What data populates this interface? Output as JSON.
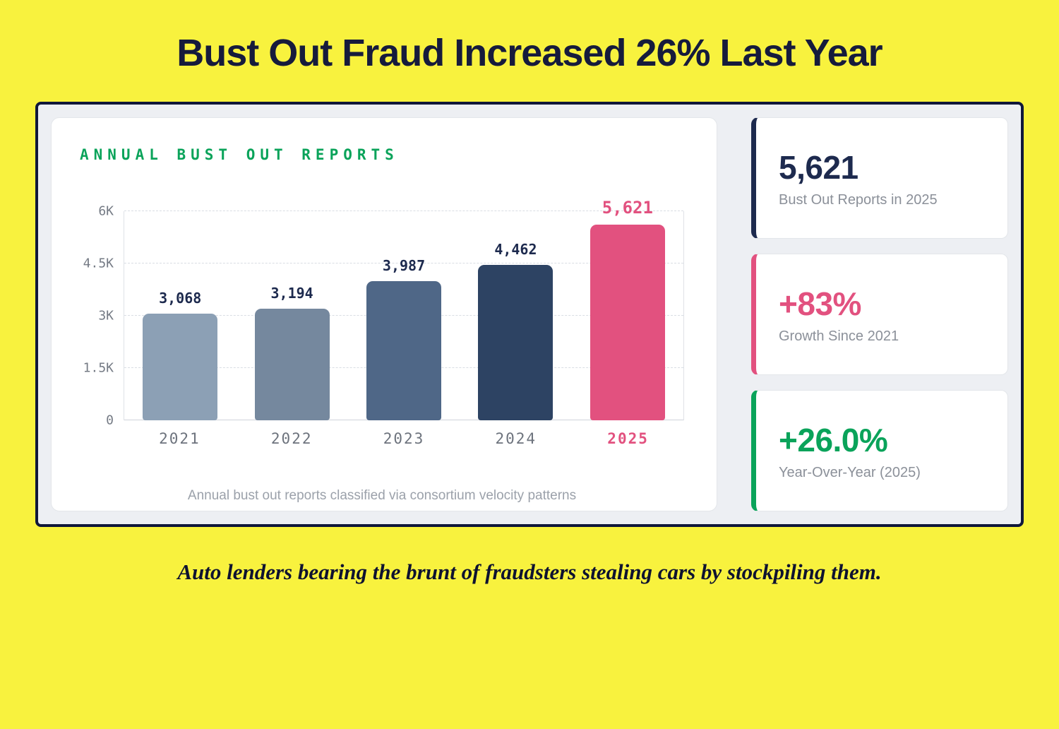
{
  "page": {
    "title": "Bust Out Fraud Increased 26% Last Year",
    "footer_note": "Auto lenders bearing the brunt of fraudsters stealing cars by stockpiling them."
  },
  "chart_data": {
    "type": "bar",
    "title": "ANNUAL BUST OUT REPORTS",
    "categories": [
      "2021",
      "2022",
      "2023",
      "2024",
      "2025"
    ],
    "values": [
      3068,
      3194,
      3987,
      4462,
      5621
    ],
    "value_labels": [
      "3,068",
      "3,194",
      "3,987",
      "4,462",
      "5,621"
    ],
    "bar_colors": [
      "#8ca0b5",
      "#75889e",
      "#4f6787",
      "#2d4363",
      "#e2517f"
    ],
    "highlight_index": 4,
    "highlight_color": "#e2517f",
    "label_color": "#1d2a4e",
    "ymax": 6000,
    "yticks": [
      {
        "label": "6K",
        "value": 6000
      },
      {
        "label": "4.5K",
        "value": 4500
      },
      {
        "label": "3K",
        "value": 3000
      },
      {
        "label": "1.5K",
        "value": 1500
      },
      {
        "label": "0",
        "value": 0
      }
    ],
    "grid": true,
    "legend": false,
    "xlabel": "",
    "ylabel": "",
    "caption": "Annual bust out reports classified via consortium velocity patterns"
  },
  "stats": [
    {
      "value": "5,621",
      "label": "Bust Out Reports in 2025",
      "accent": "#1d2a4e",
      "value_color": "#1d2a4e"
    },
    {
      "value": "+83%",
      "label": "Growth Since 2021",
      "accent": "#e2517f",
      "value_color": "#e2517f"
    },
    {
      "value": "+26.0%",
      "label": "Year-Over-Year (2025)",
      "accent": "#0aa35a",
      "value_color": "#0aa35a"
    }
  ]
}
